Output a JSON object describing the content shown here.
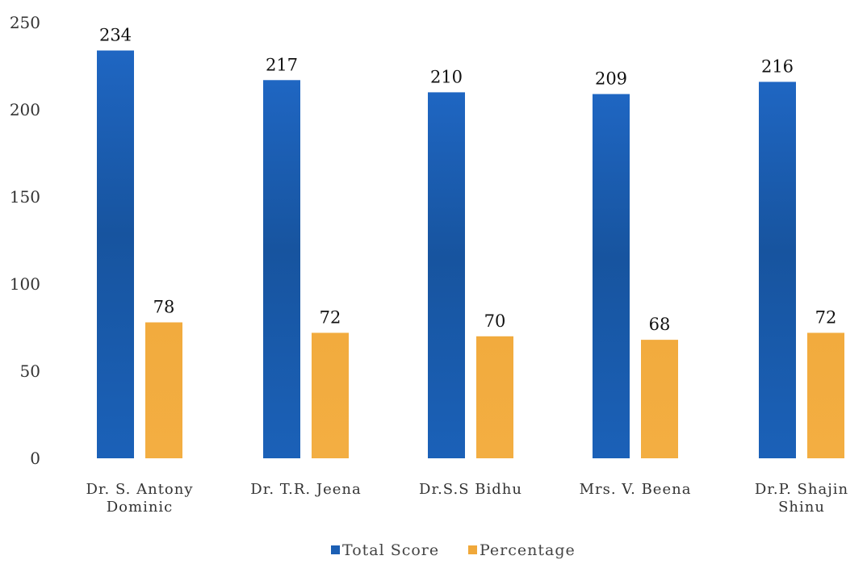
{
  "chart_data": {
    "type": "bar",
    "categories": [
      "Dr. S. Antony Dominic",
      "Dr. T.R. Jeena",
      "Dr.S.S Bidhu",
      "Mrs. V. Beena",
      "Dr.P. Shajin Shinu"
    ],
    "series": [
      {
        "name": "Total Score",
        "values": [
          234,
          217,
          210,
          209,
          216
        ],
        "color": "#1b5fb4"
      },
      {
        "name": "Percentage",
        "values": [
          78,
          72,
          70,
          68,
          72
        ],
        "color": "#f0a83a"
      }
    ],
    "yticks": [
      "0",
      "50",
      "100",
      "150",
      "200",
      "250"
    ],
    "ylim": [
      0,
      250
    ],
    "grid": false,
    "legend_position": "bottom",
    "title": "",
    "xlabel": "",
    "ylabel": ""
  }
}
